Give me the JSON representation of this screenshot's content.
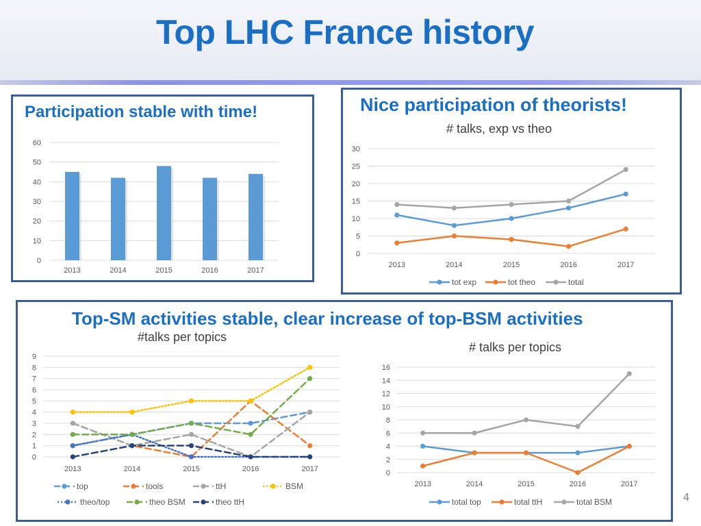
{
  "slide": {
    "title": "Top LHC France history",
    "page_number": "4"
  },
  "panels": {
    "left": {
      "heading": "Participation stable with time!"
    },
    "right": {
      "heading": "Nice participation of theorists!"
    },
    "bottom": {
      "heading": "Top-SM activities stable,  clear increase of top-BSM activities"
    }
  },
  "colors": {
    "title": "#1a6fc4",
    "panel_border": "#3b5c9a",
    "bar": "#5b9bd5",
    "blue": "#5b9bd5",
    "orange": "#ed7d31",
    "gray": "#a5a5a5",
    "yellow": "#ffc000",
    "green": "#70ad47",
    "dark_blue": "#264478",
    "mid_blue": "#4472c4"
  },
  "chart_data": [
    {
      "id": "participation",
      "type": "bar",
      "title": "",
      "categories": [
        "2013",
        "2014",
        "2015",
        "2016",
        "2017"
      ],
      "values": [
        45,
        42,
        48,
        42,
        44
      ],
      "ylim": [
        0,
        60
      ],
      "yticks": [
        0,
        10,
        20,
        30,
        40,
        50,
        60
      ],
      "grid": true,
      "legend": "none"
    },
    {
      "id": "exp_vs_theo",
      "type": "line",
      "title": "# talks, exp vs theo",
      "categories": [
        "2013",
        "2014",
        "2015",
        "2016",
        "2017"
      ],
      "ylim": [
        0,
        30
      ],
      "yticks": [
        0,
        5,
        10,
        15,
        20,
        25,
        30
      ],
      "grid": true,
      "legend": "bottom",
      "series": [
        {
          "name": "tot exp",
          "color": "#5b9bd5",
          "dash": "solid",
          "values": [
            11,
            8,
            10,
            13,
            17
          ]
        },
        {
          "name": "tot theo",
          "color": "#ed7d31",
          "dash": "solid",
          "values": [
            3,
            5,
            4,
            2,
            7
          ]
        },
        {
          "name": "total",
          "color": "#a5a5a5",
          "dash": "solid",
          "values": [
            14,
            13,
            14,
            15,
            24
          ]
        }
      ]
    },
    {
      "id": "talks_per_topics",
      "type": "line",
      "title": "#talks per topics",
      "categories": [
        "2013",
        "2014",
        "2015",
        "2016",
        "2017"
      ],
      "ylim": [
        0,
        9
      ],
      "yticks": [
        0,
        1,
        2,
        3,
        4,
        5,
        6,
        7,
        8,
        9
      ],
      "grid": true,
      "legend": "bottom",
      "series": [
        {
          "name": "top",
          "color": "#5b9bd5",
          "dash": "longdash",
          "values": [
            1,
            2,
            3,
            3,
            4
          ]
        },
        {
          "name": "tools",
          "color": "#ed7d31",
          "dash": "longdash",
          "values": [
            3,
            1,
            0,
            5,
            1
          ]
        },
        {
          "name": "ttH",
          "color": "#a5a5a5",
          "dash": "longdash",
          "values": [
            3,
            1,
            2,
            0,
            4
          ]
        },
        {
          "name": "BSM",
          "color": "#ffc000",
          "dash": "dotted",
          "values": [
            4,
            4,
            5,
            5,
            8
          ]
        },
        {
          "name": "theo/top",
          "color": "#4472c4",
          "dash": "dotted",
          "values": [
            1,
            2,
            0,
            0,
            0
          ]
        },
        {
          "name": "theo BSM",
          "color": "#70ad47",
          "dash": "longdash",
          "values": [
            2,
            2,
            3,
            2,
            7
          ]
        },
        {
          "name": "theo ttH",
          "color": "#264478",
          "dash": "longdash",
          "values": [
            0,
            1,
            1,
            0,
            0
          ]
        }
      ]
    },
    {
      "id": "talks_per_topics_totals",
      "type": "line",
      "title": "# talks per topics",
      "categories": [
        "2013",
        "2014",
        "2015",
        "2016",
        "2017"
      ],
      "ylim": [
        0,
        16
      ],
      "yticks": [
        0,
        2,
        4,
        6,
        8,
        10,
        12,
        14,
        16
      ],
      "grid": true,
      "legend": "bottom",
      "series": [
        {
          "name": "total top",
          "color": "#5b9bd5",
          "dash": "solid",
          "values": [
            4,
            3,
            3,
            3,
            4
          ]
        },
        {
          "name": "total ttH",
          "color": "#ed7d31",
          "dash": "solid",
          "values": [
            1,
            3,
            3,
            0,
            4
          ]
        },
        {
          "name": "total BSM",
          "color": "#a5a5a5",
          "dash": "solid",
          "values": [
            6,
            6,
            8,
            7,
            15
          ]
        }
      ]
    }
  ]
}
